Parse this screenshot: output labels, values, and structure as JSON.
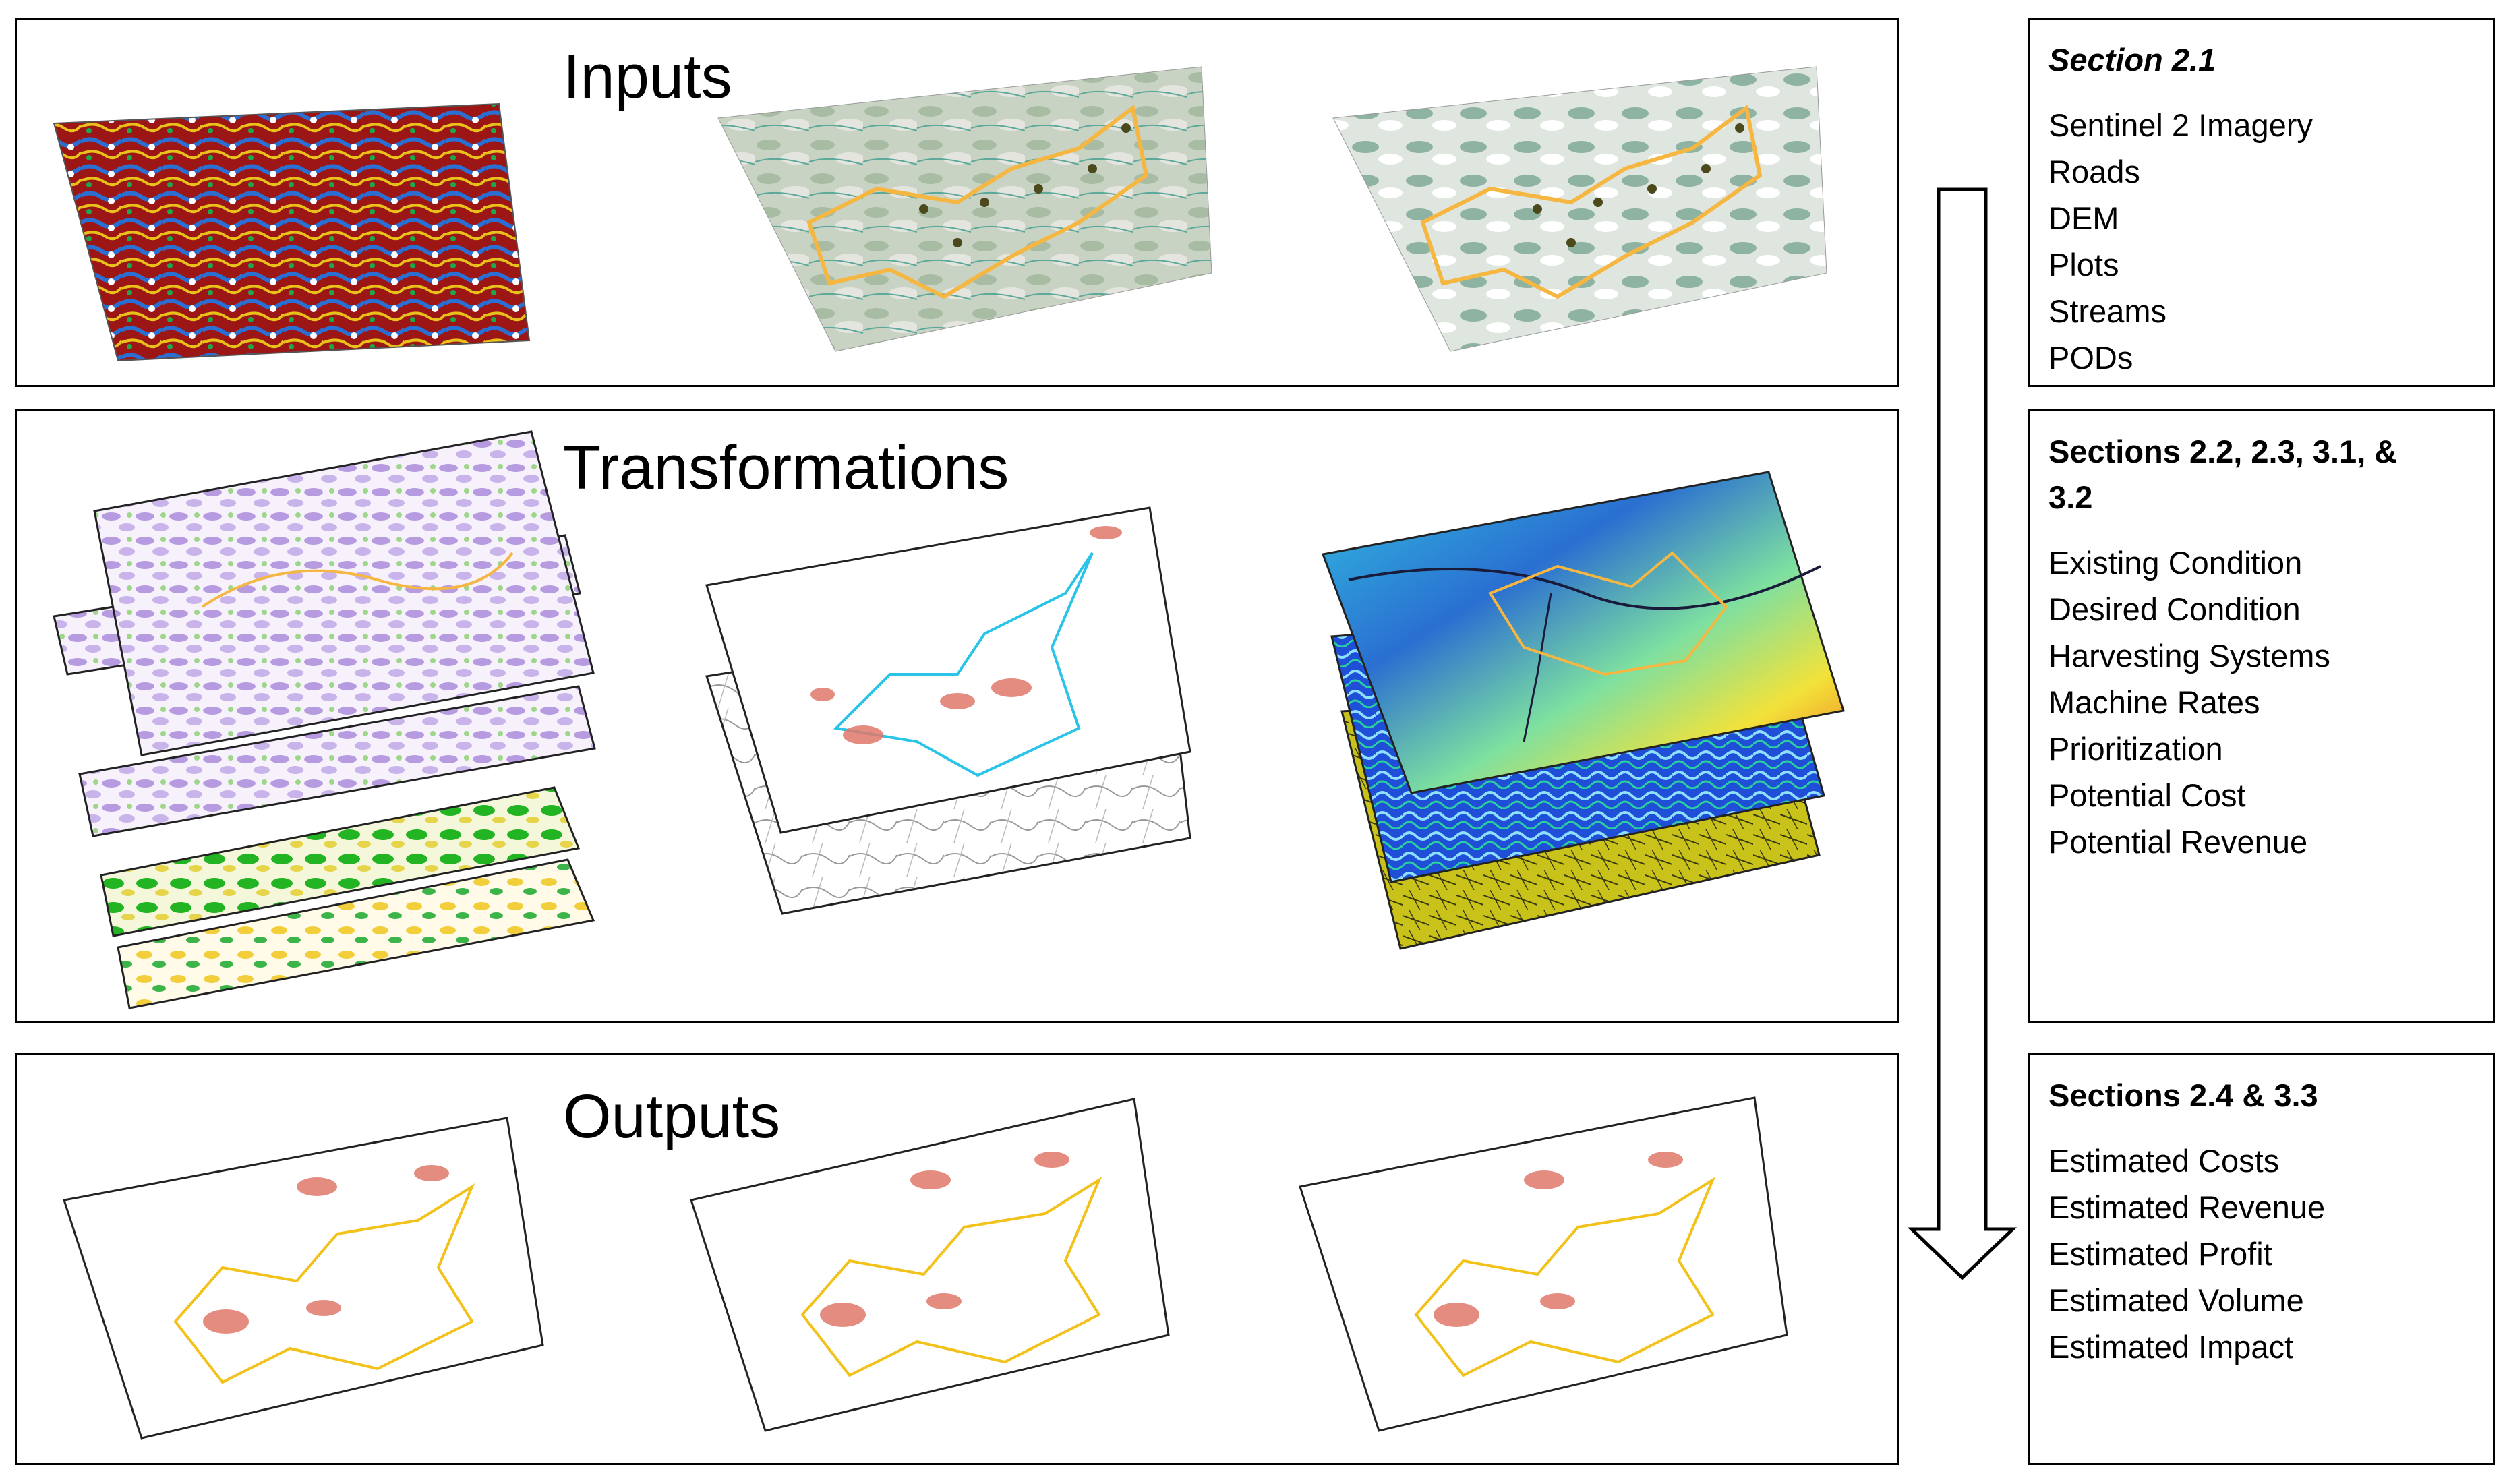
{
  "panels": {
    "inputs": {
      "title": "Inputs"
    },
    "transformations": {
      "title": "Transformations"
    },
    "outputs": {
      "title": "Outputs"
    }
  },
  "sidebar": {
    "inputs": {
      "header": "Section 2.1",
      "items": [
        "Sentinel 2 Imagery",
        "Roads",
        "DEM",
        "Plots",
        "Streams",
        "PODs"
      ]
    },
    "transformations": {
      "header_line1": "Sections 2.2, 2.3, 3.1, &",
      "header_line2": "3.2",
      "items": [
        "Existing Condition",
        "Desired Condition",
        "Harvesting Systems",
        "Machine Rates",
        "Prioritization",
        "Potential Cost",
        "Potential Revenue"
      ]
    },
    "outputs": {
      "header": "Sections 2.4 & 3.3",
      "items": [
        "Estimated Costs",
        "Estimated Revenue",
        "Estimated Profit",
        "Estimated Volume",
        "Estimated Impact"
      ]
    }
  },
  "colors": {
    "border": "#000000",
    "background": "#ffffff",
    "boundary_orange": "#f5b642",
    "boundary_cyan": "#29c4e8",
    "dem_red": "#a01818",
    "dem_blue": "#2a6fd1",
    "veg_purple": "#b79be0",
    "veg_green": "#22b422",
    "cost_red": "#e0786a"
  }
}
